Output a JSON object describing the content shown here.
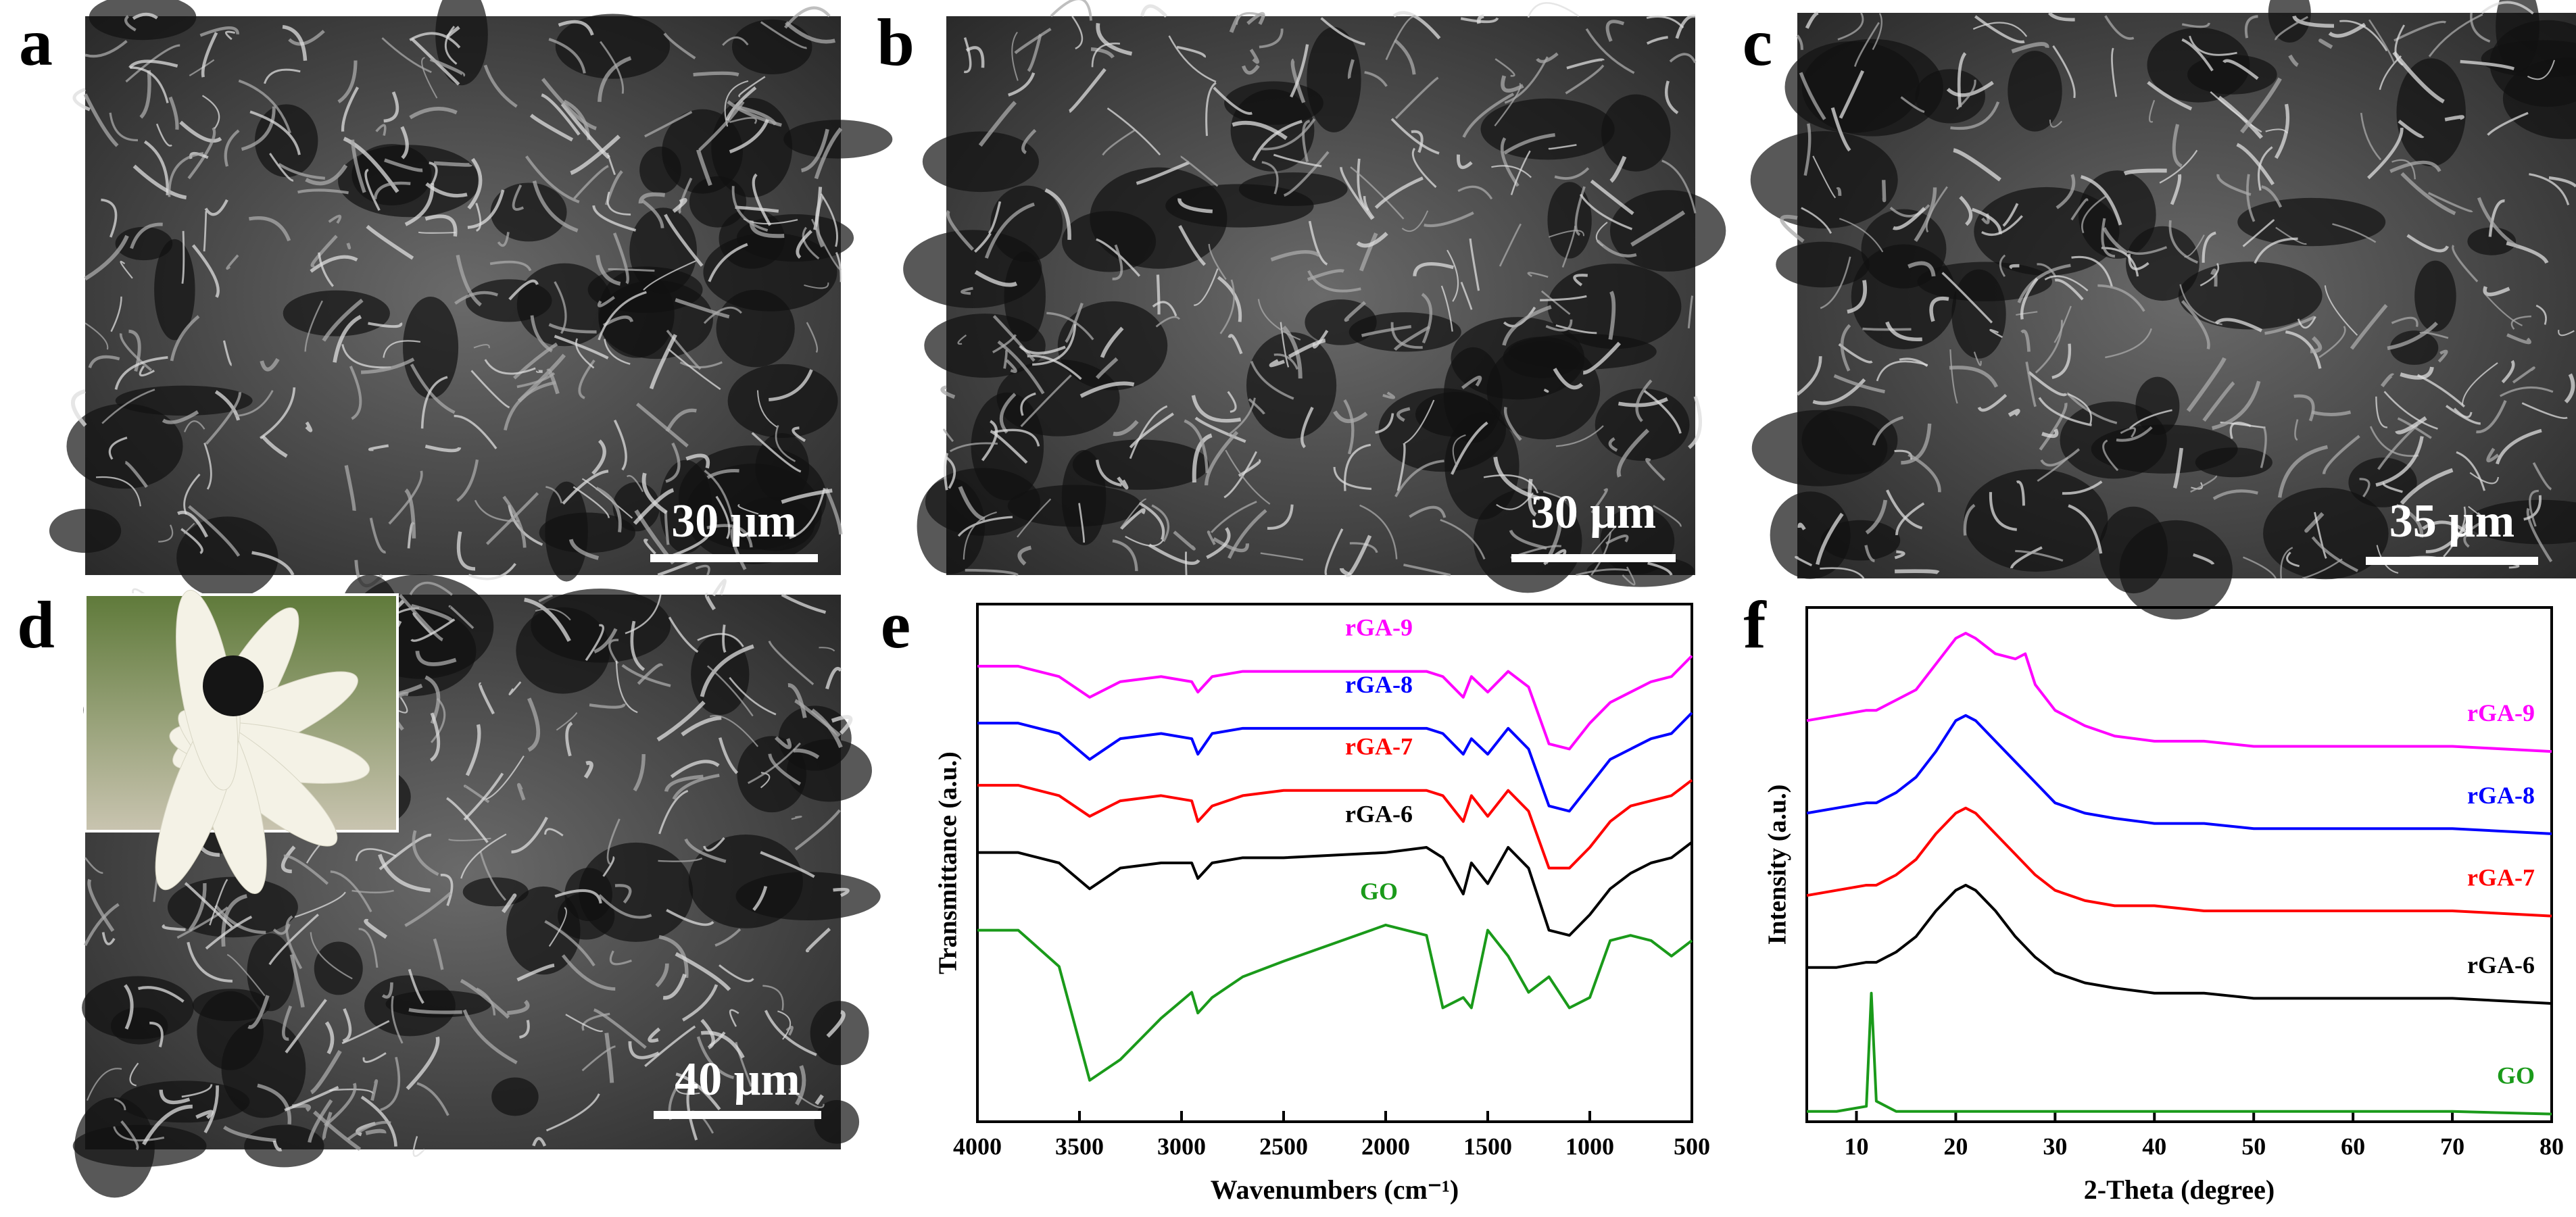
{
  "panels": [
    {
      "label": "a",
      "scale_bar": "30 μm"
    },
    {
      "label": "b",
      "scale_bar": "30 μm"
    },
    {
      "label": "c",
      "scale_bar": "35 μm"
    },
    {
      "label": "d",
      "scale_bar": "40 μm"
    }
  ],
  "chart_data": [
    {
      "type": "line",
      "label": "e",
      "xlabel": "Wavenumbers (cm⁻¹)",
      "ylabel": "Transmittance (a.u.)",
      "x": [
        4000,
        3800,
        3600,
        3450,
        3300,
        3100,
        2950,
        2920,
        2850,
        2700,
        2500,
        2000,
        1800,
        1720,
        1620,
        1580,
        1500,
        1400,
        1300,
        1200,
        1100,
        1000,
        900,
        800,
        700,
        600,
        500
      ],
      "xlim": [
        4000,
        500
      ],
      "xticks": [
        4000,
        3500,
        3000,
        2500,
        2000,
        1500,
        1000,
        500
      ],
      "ylim": [
        0,
        100
      ],
      "series": [
        {
          "name": "rGA-9",
          "color": "#ff00ff",
          "values": [
            88,
            88,
            86,
            82,
            85,
            86,
            85,
            83,
            86,
            87,
            87,
            87,
            87,
            86,
            82,
            86,
            83,
            87,
            84,
            73,
            72,
            77,
            81,
            83,
            85,
            86,
            90
          ]
        },
        {
          "name": "rGA-8",
          "color": "#0000ff",
          "values": [
            77,
            77,
            75,
            70,
            74,
            75,
            74,
            71,
            75,
            76,
            76,
            76,
            76,
            75,
            71,
            74,
            71,
            76,
            72,
            61,
            60,
            65,
            70,
            72,
            74,
            75,
            79
          ]
        },
        {
          "name": "rGA-7",
          "color": "#ff0000",
          "values": [
            65,
            65,
            63,
            59,
            62,
            63,
            62,
            58,
            61,
            63,
            64,
            64,
            64,
            63,
            58,
            63,
            59,
            64,
            60,
            49,
            49,
            53,
            58,
            61,
            62,
            63,
            66
          ]
        },
        {
          "name": "rGA-6",
          "color": "#000000",
          "values": [
            52,
            52,
            50,
            45,
            49,
            50,
            50,
            47,
            50,
            51,
            51,
            52,
            53,
            51,
            44,
            50,
            46,
            53,
            49,
            37,
            36,
            40,
            45,
            48,
            50,
            51,
            54
          ]
        },
        {
          "name": "GO",
          "color": "#1a9a1a",
          "values": [
            37,
            37,
            30,
            8,
            12,
            20,
            25,
            21,
            24,
            28,
            31,
            38,
            36,
            22,
            24,
            22,
            37,
            32,
            25,
            28,
            22,
            24,
            35,
            36,
            35,
            32,
            35
          ]
        }
      ]
    },
    {
      "type": "line",
      "label": "f",
      "xlabel": "2-Theta (degree)",
      "ylabel": "Intensity (a.u.)",
      "x": [
        5,
        8,
        11,
        11.5,
        12,
        14,
        16,
        18,
        20,
        21,
        22,
        24,
        26,
        27,
        28,
        30,
        33,
        36,
        40,
        45,
        50,
        60,
        70,
        80
      ],
      "xlim": [
        5,
        80
      ],
      "xticks": [
        10,
        20,
        30,
        40,
        50,
        60,
        70,
        80
      ],
      "ylim": [
        0,
        100
      ],
      "series": [
        {
          "name": "rGA-9",
          "color": "#ff00ff",
          "values": [
            78,
            79,
            80,
            80,
            80,
            82,
            84,
            89,
            94,
            95,
            94,
            91,
            90,
            91,
            85,
            80,
            77,
            75,
            74,
            74,
            73,
            73,
            73,
            72
          ]
        },
        {
          "name": "rGA-8",
          "color": "#0000ff",
          "values": [
            60,
            61,
            62,
            62,
            62,
            64,
            67,
            72,
            78,
            79,
            78,
            74,
            70,
            68,
            66,
            62,
            60,
            59,
            58,
            58,
            57,
            57,
            57,
            56
          ]
        },
        {
          "name": "rGA-7",
          "color": "#ff0000",
          "values": [
            44,
            45,
            46,
            46,
            46,
            48,
            51,
            56,
            60,
            61,
            60,
            56,
            52,
            50,
            48,
            45,
            43,
            42,
            42,
            41,
            41,
            41,
            41,
            40
          ]
        },
        {
          "name": "rGA-6",
          "color": "#000000",
          "values": [
            30,
            30,
            31,
            31,
            31,
            33,
            36,
            41,
            45,
            46,
            45,
            41,
            36,
            34,
            32,
            29,
            27,
            26,
            25,
            25,
            24,
            24,
            24,
            23
          ]
        },
        {
          "name": "GO",
          "color": "#1a9a1a",
          "values": [
            2,
            2,
            3,
            25,
            4,
            2,
            2,
            2,
            2,
            2,
            2,
            2,
            2,
            2,
            2,
            2,
            2,
            2,
            2,
            2,
            2,
            2,
            2,
            1.5
          ]
        }
      ]
    }
  ]
}
